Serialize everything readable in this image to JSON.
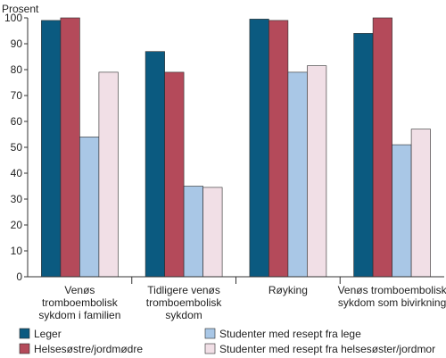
{
  "chart_data": {
    "type": "bar",
    "ylabel": "Prosent",
    "ylim": [
      0,
      100
    ],
    "yticks": [
      0,
      10,
      20,
      30,
      40,
      50,
      60,
      70,
      80,
      90,
      100
    ],
    "grid": false,
    "legend_position": "bottom",
    "categories": [
      [
        "Venøs",
        "tromboembolisk",
        "sykdom i familien"
      ],
      [
        "Tidligere venøs",
        "tromboembolisk",
        "sykdom"
      ],
      [
        "Røyking"
      ],
      [
        "Venøs tromboembolisk",
        "sykdom som bivirkning"
      ]
    ],
    "series": [
      {
        "name": "Leger",
        "color": "#0b5a80",
        "values": [
          99,
          87,
          99.5,
          94
        ]
      },
      {
        "name": "Helsesøstre/jordmødre",
        "color": "#b44a5a",
        "values": [
          100,
          79,
          99,
          100
        ]
      },
      {
        "name": "Studenter med resept fra lege",
        "color": "#a9c7e6",
        "values": [
          54,
          35,
          79,
          51
        ]
      },
      {
        "name": "Studenter med resept fra helsesøster/jordmor",
        "color": "#f1dfe6",
        "values": [
          79,
          34.5,
          81.5,
          57
        ]
      }
    ]
  }
}
